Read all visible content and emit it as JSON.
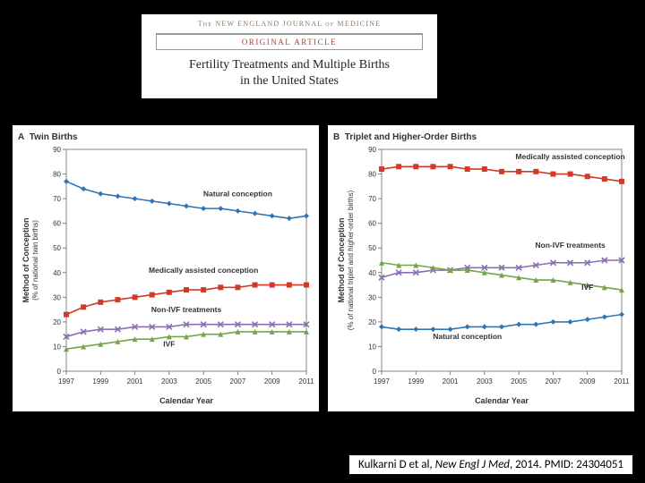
{
  "header": {
    "journal": "The NEW ENGLAND JOURNAL of MEDICINE",
    "article_type": "ORIGINAL ARTICLE",
    "title_line1": "Fertility Treatments and Multiple Births",
    "title_line2": "in the United States"
  },
  "citation": {
    "author": "Kulkarni D et al, ",
    "journal_ital": "New Engl J Med",
    "rest": ", 2014. PMID: 24304051"
  },
  "chartA": {
    "panel_label": "A",
    "panel_title": "Twin Births",
    "type": "line",
    "xlabel": "Calendar Year",
    "ylabel": "Method of Conception\n(% of national twin births)",
    "xlim": [
      1997,
      2011
    ],
    "ylim": [
      0,
      90
    ],
    "xticks": [
      1997,
      1999,
      2001,
      2003,
      2005,
      2007,
      2009,
      2011
    ],
    "yticks": [
      0,
      10,
      20,
      30,
      40,
      50,
      60,
      70,
      80,
      90
    ],
    "label_fontsize": 9,
    "tick_fontsize": 8,
    "background": "#ffffff",
    "grid_color": "#d9d9d9",
    "axis_color": "#666666",
    "series": [
      {
        "name": "Natural conception",
        "color": "#2e75b6",
        "marker": "diamond",
        "values": [
          77,
          74,
          72,
          71,
          70,
          69,
          68,
          67,
          66,
          66,
          65,
          64,
          63,
          62,
          63
        ],
        "label_x": 2007,
        "label_y": 71
      },
      {
        "name": "Medically assisted conception",
        "color": "#d03a2b",
        "marker": "square",
        "values": [
          23,
          26,
          28,
          29,
          30,
          31,
          32,
          33,
          33,
          34,
          34,
          35,
          35,
          35,
          35
        ],
        "label_x": 2005,
        "label_y": 40
      },
      {
        "name": "Non-IVF treatments",
        "color": "#8a6fb0",
        "marker": "x",
        "values": [
          14,
          16,
          17,
          17,
          18,
          18,
          18,
          19,
          19,
          19,
          19,
          19,
          19,
          19,
          19
        ],
        "label_x": 2004,
        "label_y": 24
      },
      {
        "name": "IVF",
        "color": "#77a34a",
        "marker": "triangle",
        "values": [
          9,
          10,
          11,
          12,
          13,
          13,
          14,
          14,
          15,
          15,
          16,
          16,
          16,
          16,
          16
        ],
        "label_x": 2003,
        "label_y": 10
      }
    ]
  },
  "chartB": {
    "panel_label": "B",
    "panel_title": "Triplet and Higher-Order Births",
    "type": "line",
    "xlabel": "Calendar Year",
    "ylabel": "Method of Conception\n(% of national triplet and higher-order births)",
    "xlim": [
      1997,
      2011
    ],
    "ylim": [
      0,
      90
    ],
    "xticks": [
      1997,
      1999,
      2001,
      2003,
      2005,
      2007,
      2009,
      2011
    ],
    "yticks": [
      0,
      10,
      20,
      30,
      40,
      50,
      60,
      70,
      80,
      90
    ],
    "label_fontsize": 9,
    "tick_fontsize": 8,
    "background": "#ffffff",
    "grid_color": "#d9d9d9",
    "axis_color": "#666666",
    "series": [
      {
        "name": "Medically assisted conception",
        "color": "#d03a2b",
        "marker": "square",
        "values": [
          82,
          83,
          83,
          83,
          83,
          82,
          82,
          81,
          81,
          81,
          80,
          80,
          79,
          78,
          77
        ],
        "label_x": 2008,
        "label_y": 86
      },
      {
        "name": "Non-IVF treatments",
        "color": "#8a6fb0",
        "marker": "x",
        "values": [
          38,
          40,
          40,
          41,
          41,
          42,
          42,
          42,
          42,
          43,
          44,
          44,
          44,
          45,
          45
        ],
        "label_x": 2008,
        "label_y": 50
      },
      {
        "name": "IVF",
        "color": "#77a34a",
        "marker": "triangle",
        "values": [
          44,
          43,
          43,
          42,
          41,
          41,
          40,
          39,
          38,
          37,
          37,
          36,
          35,
          34,
          33
        ],
        "label_x": 2009,
        "label_y": 33
      },
      {
        "name": "Natural conception",
        "color": "#2e75b6",
        "marker": "diamond",
        "values": [
          18,
          17,
          17,
          17,
          17,
          18,
          18,
          18,
          19,
          19,
          20,
          20,
          21,
          22,
          23
        ],
        "label_x": 2002,
        "label_y": 13
      }
    ]
  }
}
